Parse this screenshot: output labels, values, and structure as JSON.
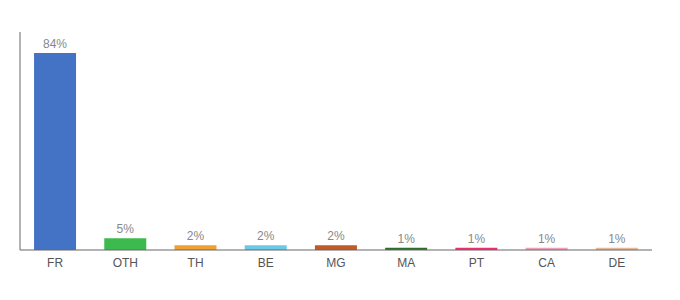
{
  "chart_data": {
    "type": "bar",
    "categories": [
      "FR",
      "OTH",
      "TH",
      "BE",
      "MG",
      "MA",
      "PT",
      "CA",
      "DE"
    ],
    "values": [
      84,
      5,
      2,
      2,
      2,
      1,
      1,
      1,
      1
    ],
    "value_labels": [
      "84%",
      "5%",
      "2%",
      "2%",
      "2%",
      "1%",
      "1%",
      "1%",
      "1%"
    ],
    "colors": [
      "#4472c4",
      "#3dba4e",
      "#f0a030",
      "#6ac8e8",
      "#c05a28",
      "#2a6e2a",
      "#e83070",
      "#f0a0b8",
      "#e8b898"
    ],
    "ylim": [
      0,
      93
    ],
    "data_labels": true,
    "tick_labels": "x",
    "grid": false
  }
}
